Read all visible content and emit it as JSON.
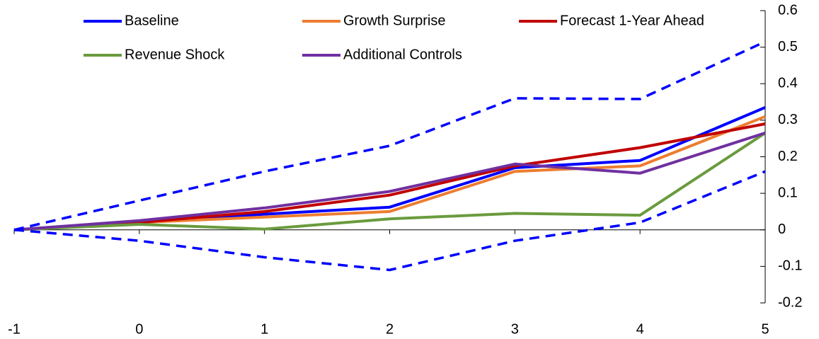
{
  "chart_data": {
    "type": "line",
    "x": [
      -1,
      0,
      1,
      2,
      3,
      4,
      5
    ],
    "xlim": [
      -1,
      5
    ],
    "xticks": [
      -1,
      0,
      1,
      2,
      3,
      4,
      5
    ],
    "ylim": [
      -0.2,
      0.6
    ],
    "yticks": [
      -0.2,
      -0.1,
      0,
      0.1,
      0.2,
      0.3,
      0.4,
      0.5,
      0.6
    ],
    "series": [
      {
        "name": "Baseline",
        "color": "#0000ff",
        "values": [
          0,
          0.02,
          0.043,
          0.062,
          0.17,
          0.19,
          0.335
        ]
      },
      {
        "name": "Growth Surprise",
        "color": "#ed7d31",
        "values": [
          0,
          0.02,
          0.035,
          0.05,
          0.16,
          0.175,
          0.31
        ]
      },
      {
        "name": "Forecast 1-Year Ahead",
        "color": "#c00000",
        "values": [
          0,
          0.02,
          0.05,
          0.095,
          0.175,
          0.225,
          0.29
        ]
      },
      {
        "name": "Revenue Shock",
        "color": "#6a9b3e",
        "values": [
          0,
          0.015,
          0.002,
          0.03,
          0.045,
          0.04,
          0.265
        ]
      },
      {
        "name": "Additional Controls",
        "color": "#7030a0",
        "values": [
          0,
          0.025,
          0.06,
          0.105,
          0.18,
          0.155,
          0.265
        ]
      },
      {
        "color": "#0000ff",
        "dashed": true,
        "values": [
          0,
          0.08,
          0.16,
          0.23,
          0.36,
          0.358,
          0.515
        ]
      },
      {
        "color": "#0000ff",
        "dashed": true,
        "values": [
          0,
          -0.03,
          -0.075,
          -0.11,
          -0.03,
          0.02,
          0.16
        ]
      }
    ]
  }
}
